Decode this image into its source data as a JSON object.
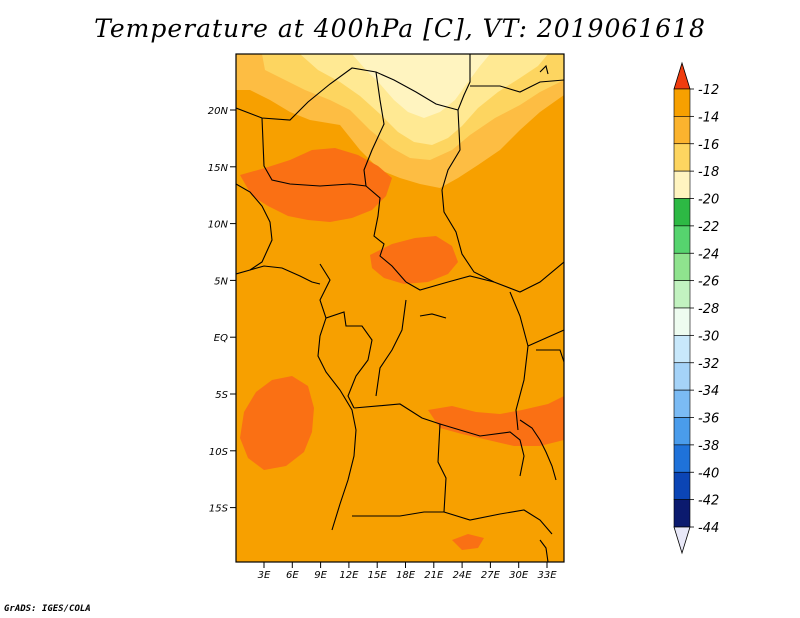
{
  "title": "Temperature at 400hPa [C], VT: 2019061618",
  "credit": "GrADS: IGES/COLA",
  "map": {
    "lat_labels": [
      "20N",
      "15N",
      "10N",
      "5N",
      "EQ",
      "5S",
      "10S",
      "15S"
    ],
    "lon_labels": [
      "3E",
      "6E",
      "9E",
      "12E",
      "15E",
      "18E",
      "21E",
      "24E",
      "27E",
      "30E",
      "33E"
    ],
    "field_colors": {
      "background": "#f7a000",
      "warm": "#fa7014",
      "pale": "#fdd560",
      "paler": "#ffe993",
      "palest": "#fff4c0",
      "light": "#fdbd43"
    }
  },
  "colorbar": {
    "labels": [
      "-12",
      "-14",
      "-16",
      "-18",
      "-20",
      "-22",
      "-24",
      "-26",
      "-28",
      "-30",
      "-32",
      "-34",
      "-36",
      "-38",
      "-40",
      "-42",
      "-44"
    ],
    "colors": [
      "#fe5a24",
      "#f7a000",
      "#fbb32e",
      "#fdd560",
      "#fff4c0",
      "#2db944",
      "#56d46e",
      "#8fe38e",
      "#c2f2c0",
      "#eefcf0",
      "#c8e8fb",
      "#a5d3f8",
      "#7bbbf4",
      "#4a9ceb",
      "#1f72d9",
      "#0b45b5",
      "#0b1a6e"
    ],
    "top_triangle_color": "#f03c0e",
    "bottom_triangle_color": "#e8e8f8"
  }
}
